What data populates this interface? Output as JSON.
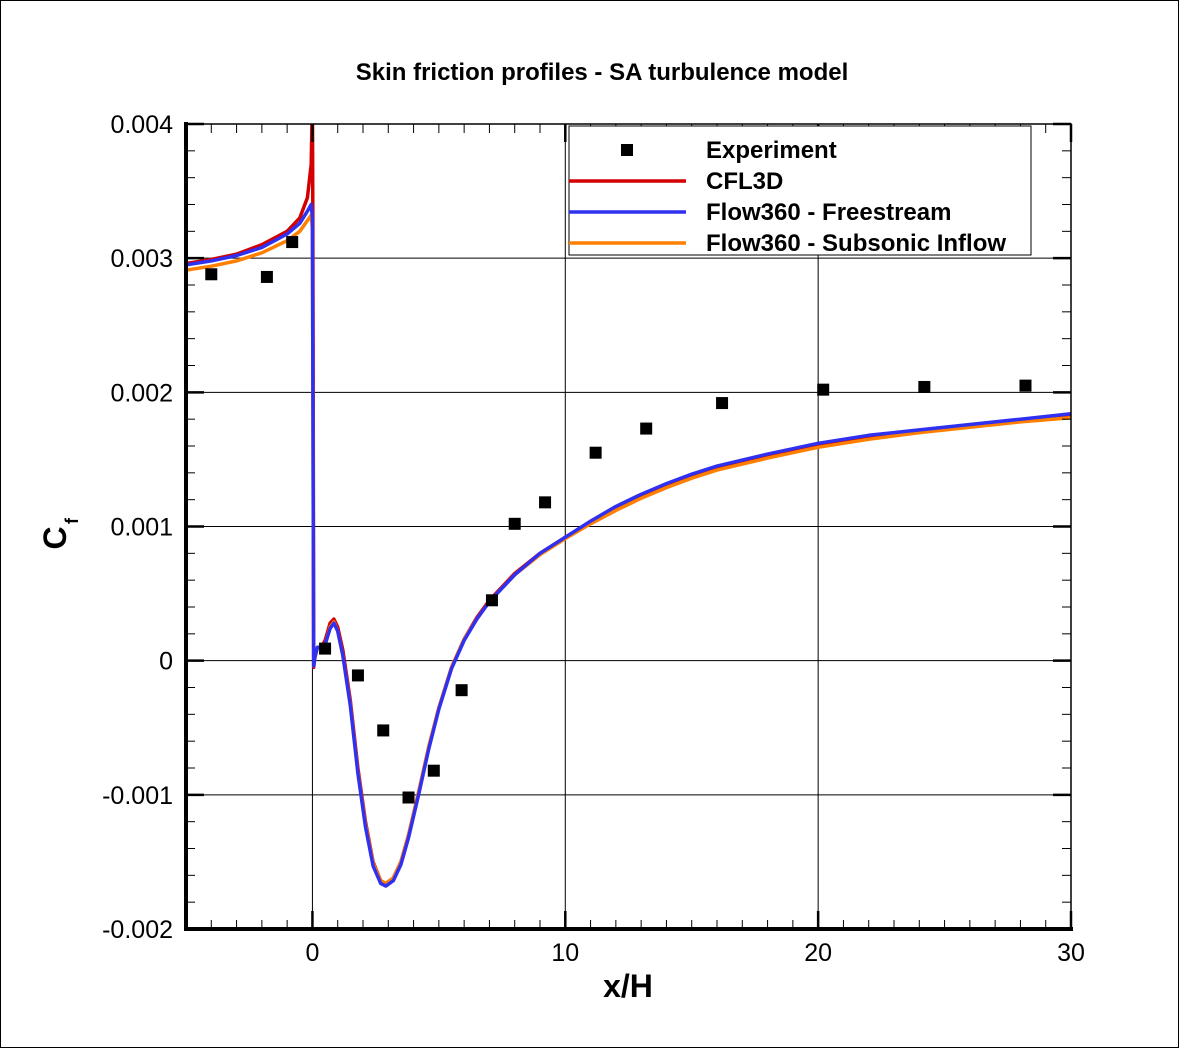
{
  "chart_data": {
    "type": "line",
    "title": "Skin friction profiles - SA turbulence model",
    "xlabel": "x/H",
    "ylabel_main": "C",
    "ylabel_sub": "f",
    "xlim": [
      -5,
      30
    ],
    "ylim": [
      -0.002,
      0.004
    ],
    "xticks": [
      0,
      10,
      20,
      30
    ],
    "xtick_labels": [
      "0",
      "10",
      "20",
      "30"
    ],
    "yticks": [
      -0.002,
      -0.001,
      0,
      0.001,
      0.002,
      0.003,
      0.004
    ],
    "ytick_labels": [
      "-0.002",
      "-0.001",
      "0",
      "0.001",
      "0.002",
      "0.003",
      "0.004"
    ],
    "grid": true,
    "legend": {
      "placement": "top-right",
      "entries": [
        "Experiment",
        "CFL3D",
        "Flow360 - Freestream",
        "Flow360 - Subsonic Inflow"
      ]
    },
    "experiment": {
      "name": "Experiment",
      "color": "#000000",
      "x": [
        -4,
        -1.8,
        -0.8,
        0.5,
        1.8,
        2.8,
        3.8,
        4.8,
        5.9,
        7.1,
        8.0,
        9.2,
        11.2,
        13.2,
        16.2,
        20.2,
        24.2,
        28.2
      ],
      "y": [
        0.00288,
        0.00286,
        0.00312,
        9e-05,
        -0.00011,
        -0.00052,
        -0.00102,
        -0.00082,
        -0.00022,
        0.00045,
        0.00102,
        0.00118,
        0.00155,
        0.00173,
        0.00192,
        0.00202,
        0.00204,
        0.00205
      ]
    },
    "series": [
      {
        "name": "CFL3D",
        "color": "#d40000",
        "x": [
          -5,
          -4,
          -3,
          -2,
          -1,
          -0.5,
          -0.2,
          -0.05,
          0,
          0.02,
          0.05,
          0.1,
          0.2,
          0.35,
          0.5,
          0.7,
          0.85,
          1.0,
          1.2,
          1.5,
          1.8,
          2.1,
          2.4,
          2.7,
          2.9,
          3.2,
          3.5,
          3.8,
          4.2,
          4.6,
          5.0,
          5.5,
          6.0,
          6.5,
          7.0,
          8.0,
          9.0,
          10.0,
          11.0,
          12.0,
          13.0,
          14.0,
          15.0,
          16.0,
          18.0,
          20.0,
          22.0,
          24.0,
          26.0,
          28.0,
          30.0
        ],
        "y": [
          0.00296,
          0.00299,
          0.00303,
          0.0031,
          0.0032,
          0.0033,
          0.00345,
          0.0037,
          0.0042,
          0.0032,
          -5e-05,
          3e-05,
          0.0001,
          0.0001,
          0.00015,
          0.00028,
          0.00031,
          0.00025,
          8e-05,
          -0.0003,
          -0.0008,
          -0.0012,
          -0.0015,
          -0.00164,
          -0.00166,
          -0.00162,
          -0.0015,
          -0.0013,
          -0.00098,
          -0.00065,
          -0.00035,
          -5e-05,
          0.00016,
          0.00032,
          0.00045,
          0.00065,
          0.0008,
          0.00092,
          0.00103,
          0.00113,
          0.00122,
          0.0013,
          0.00137,
          0.00143,
          0.00152,
          0.0016,
          0.00166,
          0.00171,
          0.00175,
          0.00179,
          0.00182
        ]
      },
      {
        "name": "Flow360 - Freestream",
        "color": "#3030f0",
        "x": [
          -5,
          -4,
          -3,
          -2,
          -1,
          -0.5,
          -0.2,
          -0.05,
          0,
          0.05,
          0.1,
          0.2,
          0.35,
          0.5,
          0.7,
          0.85,
          1.0,
          1.2,
          1.5,
          1.8,
          2.1,
          2.4,
          2.7,
          2.9,
          3.2,
          3.5,
          3.8,
          4.2,
          4.6,
          5.0,
          5.5,
          6.0,
          6.5,
          7.0,
          8.0,
          9.0,
          10.0,
          11.0,
          12.0,
          13.0,
          14.0,
          15.0,
          16.0,
          18.0,
          20.0,
          22.0,
          24.0,
          26.0,
          28.0,
          30.0
        ],
        "y": [
          0.00295,
          0.00298,
          0.00302,
          0.00308,
          0.00318,
          0.00326,
          0.00335,
          0.0034,
          0.0033,
          -4e-05,
          3e-05,
          0.0001,
          0.0001,
          0.00012,
          0.00024,
          0.00028,
          0.00022,
          4e-05,
          -0.00034,
          -0.00084,
          -0.00124,
          -0.00153,
          -0.00166,
          -0.00168,
          -0.00164,
          -0.00152,
          -0.00132,
          -0.001,
          -0.00066,
          -0.00036,
          -6e-05,
          0.00015,
          0.00031,
          0.00044,
          0.00064,
          0.0008,
          0.00092,
          0.00104,
          0.00115,
          0.00124,
          0.00132,
          0.00139,
          0.00145,
          0.00154,
          0.00162,
          0.00168,
          0.00172,
          0.00176,
          0.0018,
          0.00184
        ]
      },
      {
        "name": "Flow360 - Subsonic Inflow",
        "color": "#ff8000",
        "x": [
          -5,
          -4,
          -3,
          -2,
          -1,
          -0.5,
          -0.2,
          -0.05,
          0,
          0.05,
          0.1,
          0.2,
          0.35,
          0.5,
          0.7,
          0.85,
          1.0,
          1.2,
          1.5,
          1.8,
          2.1,
          2.4,
          2.7,
          2.9,
          3.2,
          3.5,
          3.8,
          4.2,
          4.6,
          5.0,
          5.5,
          6.0,
          6.5,
          7.0,
          8.0,
          9.0,
          10.0,
          11.0,
          12.0,
          13.0,
          14.0,
          15.0,
          16.0,
          18.0,
          20.0,
          22.0,
          24.0,
          26.0,
          28.0,
          30.0
        ],
        "y": [
          0.00291,
          0.00294,
          0.00298,
          0.00304,
          0.00313,
          0.0032,
          0.00328,
          0.00332,
          0.00322,
          -4e-05,
          3e-05,
          0.0001,
          0.0001,
          0.00012,
          0.00025,
          0.00029,
          0.00022,
          4e-05,
          -0.00033,
          -0.00083,
          -0.00122,
          -0.00151,
          -0.00164,
          -0.00166,
          -0.00162,
          -0.0015,
          -0.0013,
          -0.00098,
          -0.00064,
          -0.00035,
          -5e-05,
          0.00016,
          0.00031,
          0.00044,
          0.00064,
          0.00079,
          0.00091,
          0.00102,
          0.00112,
          0.00121,
          0.00129,
          0.00136,
          0.00142,
          0.00151,
          0.00159,
          0.00165,
          0.0017,
          0.00174,
          0.00178,
          0.00181
        ]
      }
    ]
  }
}
